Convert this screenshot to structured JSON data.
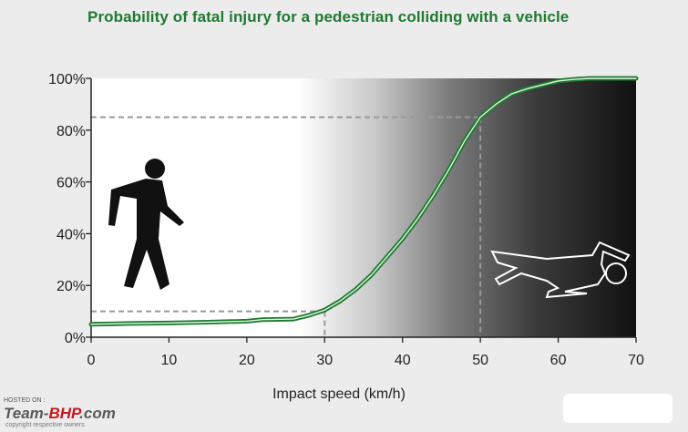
{
  "chart_data": {
    "type": "line",
    "title": "Probability of fatal injury for a pedestrian colliding with a vehicle",
    "xlabel": "Impact speed (km/h)",
    "ylabel": "",
    "xlim": [
      0,
      70
    ],
    "ylim": [
      0,
      100
    ],
    "x_ticks": [
      "0",
      "10",
      "20",
      "30",
      "40",
      "50",
      "60",
      "70"
    ],
    "y_ticks": [
      "0%",
      "20%",
      "40%",
      "60%",
      "80%",
      "100%"
    ],
    "grid": false,
    "series": [
      {
        "color": "#1e7a2e",
        "x": [
          0,
          5,
          10,
          15,
          20,
          22,
          26,
          28,
          30,
          32,
          34,
          36,
          38,
          40,
          42,
          44,
          46,
          48,
          50,
          52,
          54,
          56,
          58,
          60,
          62,
          64,
          66,
          70
        ],
        "y": [
          5,
          5.3,
          5.5,
          5.8,
          6.2,
          6.8,
          7,
          8.5,
          10.5,
          14,
          18.5,
          24,
          31,
          38,
          46,
          55,
          65,
          76,
          85,
          90,
          94,
          96,
          97.5,
          99,
          99.6,
          100,
          100,
          100
        ]
      }
    ],
    "reference_lines": [
      {
        "x": 30,
        "y": 10
      },
      {
        "x": 50,
        "y": 85
      }
    ]
  },
  "icons": [
    "walking-pedestrian-icon",
    "fallen-body-outline-icon"
  ],
  "watermark": {
    "hosted_on": "HOSTED ON :",
    "logo_team": "Team-",
    "logo_bhp": "BHP",
    "logo_com": ".com",
    "copyright": "copyright respective owners"
  }
}
